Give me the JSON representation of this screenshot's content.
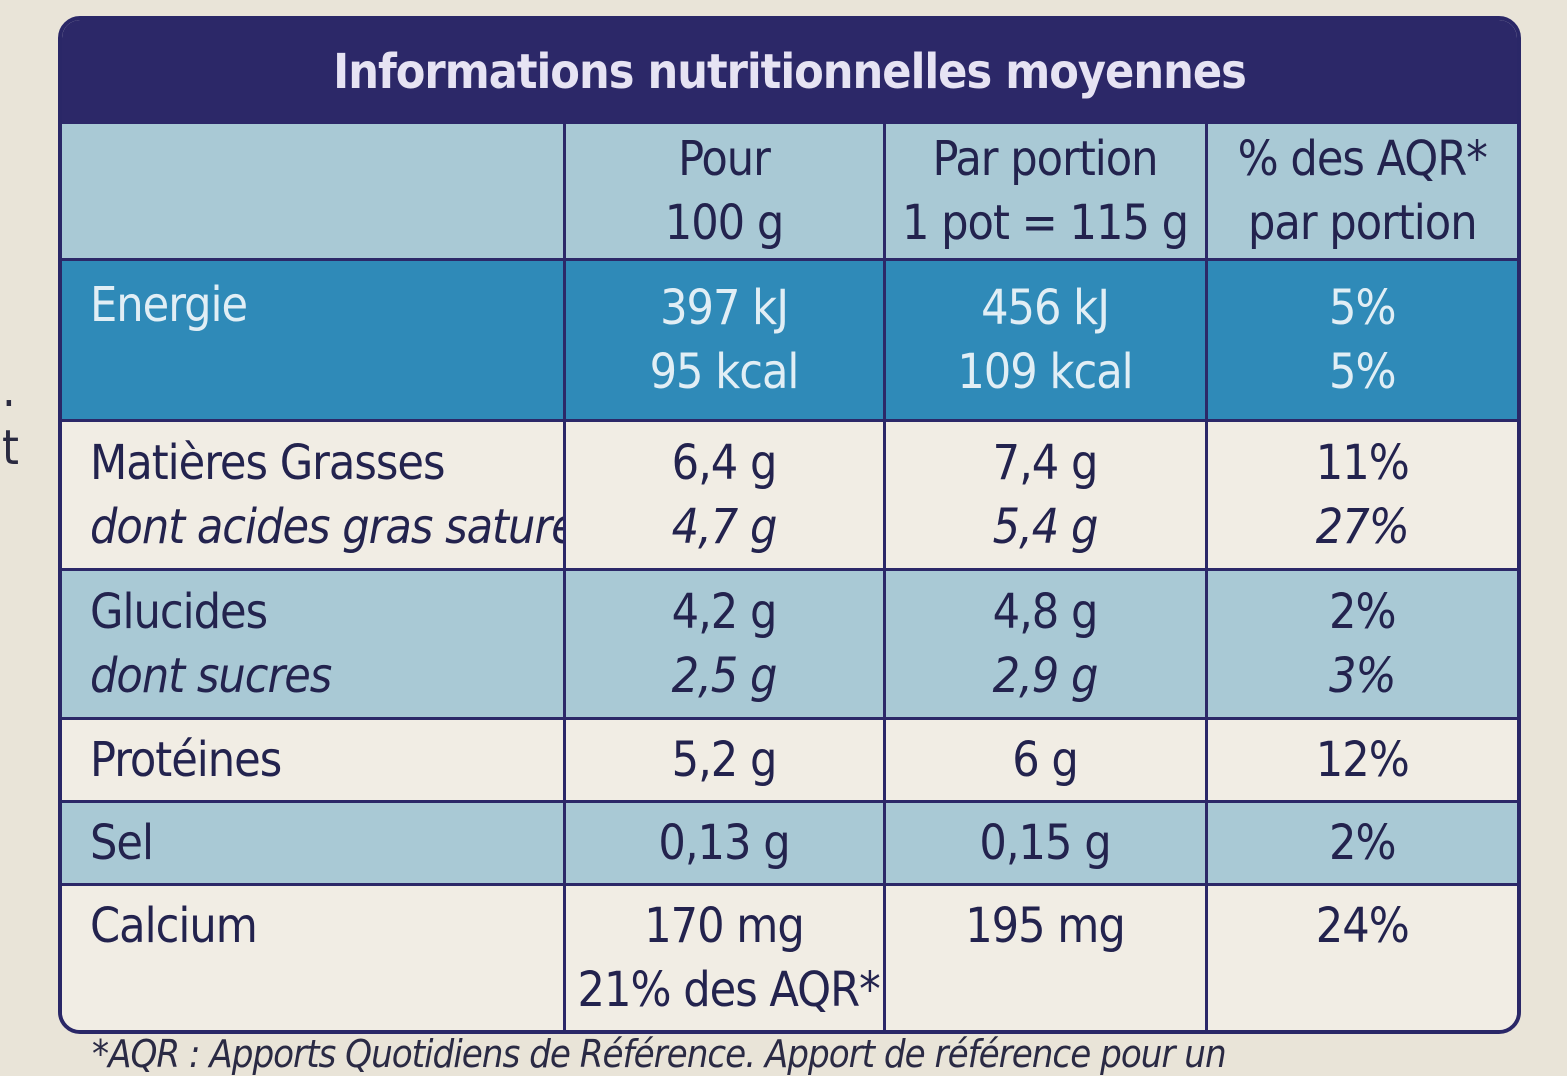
{
  "edge_marks": [
    ".",
    "t"
  ],
  "title": "Informations nutritionnelles moyennes",
  "columns": {
    "c1": [
      "Pour",
      "100 g"
    ],
    "c2": [
      "Par portion",
      "1 pot = 115 g"
    ],
    "c3": [
      "% des AQR*",
      "par portion"
    ]
  },
  "rows": {
    "energie": {
      "label": "Energie",
      "c1": [
        "397 kJ",
        "95 kcal"
      ],
      "c2": [
        "456 kJ",
        "109 kcal"
      ],
      "c3": [
        "5%",
        "5%"
      ]
    },
    "matieres_grasses": {
      "label": "Matières Grasses",
      "sublabel": "dont acides gras saturés",
      "c1": [
        "6,4 g",
        "4,7 g"
      ],
      "c2": [
        "7,4 g",
        "5,4 g"
      ],
      "c3": [
        "11%",
        "27%"
      ]
    },
    "glucides": {
      "label": "Glucides",
      "sublabel": "dont sucres",
      "c1": [
        "4,2 g",
        "2,5 g"
      ],
      "c2": [
        "4,8 g",
        "2,9 g"
      ],
      "c3": [
        "2%",
        "3%"
      ]
    },
    "proteines": {
      "label": "Protéines",
      "c1": "5,2 g",
      "c2": "6 g",
      "c3": "12%"
    },
    "sel": {
      "label": "Sel",
      "c1": "0,13 g",
      "c2": "0,15 g",
      "c3": "2%"
    },
    "calcium": {
      "label": "Calcium",
      "c1": [
        "170 mg",
        "21% des AQR*"
      ],
      "c2": "195 mg",
      "c3": "24%"
    }
  },
  "footer": "*AQR : Apports Quotidiens de Référence. Apport de référence pour un",
  "colors": {
    "title_bg": "#2c2868",
    "header_bg": "#a9c9d5",
    "energy_bg": "#2f8ab8",
    "light_row_bg": "#f1ede4",
    "blue_row_bg": "#a9c9d5",
    "background": "#e9e4d8"
  }
}
